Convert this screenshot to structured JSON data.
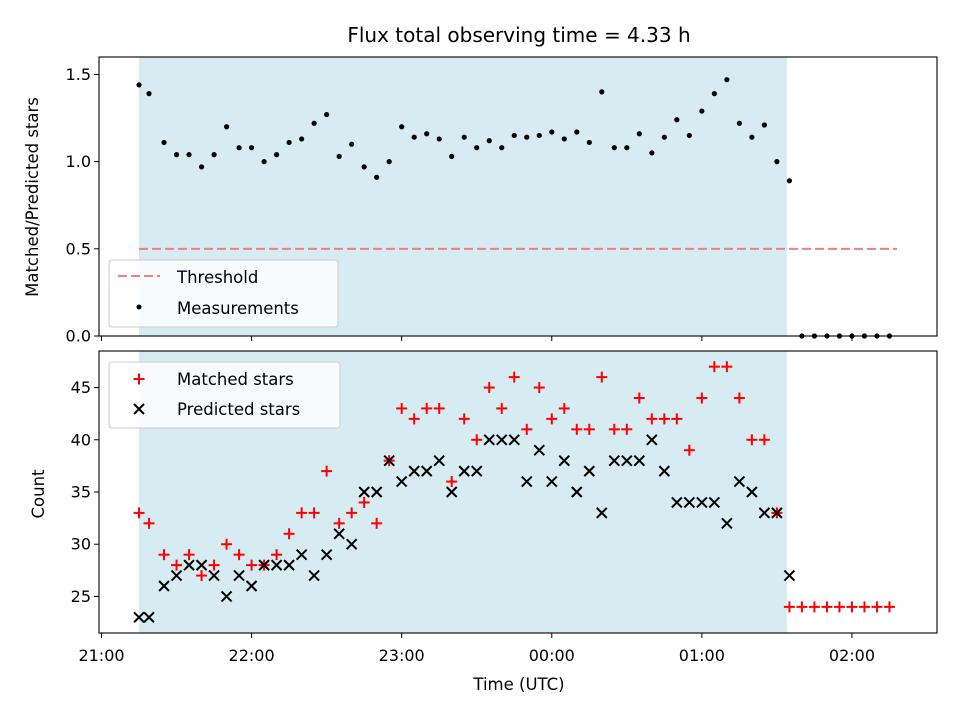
{
  "chart_data": {
    "type": "scatter",
    "title": "Flux total observing time = 4.33 h",
    "xlabel": "Time (UTC)",
    "x_axis": {
      "ticks": [
        0,
        60,
        120,
        180,
        240,
        300,
        360
      ],
      "tick_labels": [
        "21:00",
        "22:00",
        "23:00",
        "00:00",
        "01:00",
        "02:00"
      ],
      "tick_values_min": [
        0,
        60,
        120,
        180,
        240,
        300
      ],
      "range_min": [
        -1,
        334
      ]
    },
    "observing_window_min": [
      15,
      274
    ],
    "observing_window_color": "#add8e6",
    "panels": [
      {
        "id": "ratio",
        "ylabel": "Matched/Predicted stars",
        "ylim": [
          0,
          1.6
        ],
        "yticks": [
          0,
          0.5,
          1.0,
          1.5
        ],
        "ytick_labels": [
          "0.0",
          "0.5",
          "1.0",
          "1.5"
        ],
        "legend_position": "lower left",
        "threshold": {
          "name": "Threshold",
          "value": 0.5,
          "x_range": [
            15,
            318
          ],
          "color": "#f08080"
        },
        "series": [
          {
            "name": "Measurements",
            "marker": "dot",
            "color": "#000000",
            "x": [
              15,
              19,
              25,
              30,
              35,
              40,
              45,
              50,
              55,
              60,
              65,
              70,
              75,
              80,
              85,
              90,
              95,
              100,
              105,
              110,
              115,
              120,
              125,
              130,
              135,
              140,
              145,
              150,
              155,
              160,
              165,
              170,
              175,
              180,
              185,
              190,
              195,
              200,
              205,
              210,
              215,
              220,
              225,
              230,
              235,
              240,
              245,
              250,
              255,
              260,
              265,
              270,
              275,
              280,
              285,
              290,
              295,
              300,
              305,
              310,
              315
            ],
            "y": [
              1.44,
              1.39,
              1.11,
              1.04,
              1.04,
              0.97,
              1.04,
              1.2,
              1.08,
              1.08,
              1.0,
              1.04,
              1.11,
              1.13,
              1.22,
              1.27,
              1.03,
              1.1,
              0.97,
              0.91,
              1.0,
              1.2,
              1.14,
              1.16,
              1.13,
              1.03,
              1.14,
              1.08,
              1.12,
              1.08,
              1.15,
              1.14,
              1.15,
              1.17,
              1.13,
              1.17,
              1.11,
              1.4,
              1.08,
              1.08,
              1.16,
              1.05,
              1.14,
              1.24,
              1.15,
              1.29,
              1.39,
              1.47,
              1.22,
              1.14,
              1.21,
              1.0,
              0.89,
              0.0,
              0.0,
              0.0,
              0.0,
              0.0,
              0.0,
              0.0,
              0.0
            ]
          }
        ]
      },
      {
        "id": "count",
        "ylabel": "Count",
        "ylim": [
          21.5,
          48.5
        ],
        "yticks": [
          25,
          30,
          35,
          40,
          45
        ],
        "ytick_labels": [
          "25",
          "30",
          "35",
          "40",
          "45"
        ],
        "legend_position": "upper left",
        "series": [
          {
            "name": "Matched stars",
            "marker": "plus",
            "color": "#ff0000",
            "x": [
              15,
              19,
              25,
              30,
              35,
              40,
              45,
              50,
              55,
              60,
              65,
              70,
              75,
              80,
              85,
              90,
              95,
              100,
              105,
              110,
              115,
              120,
              125,
              130,
              135,
              140,
              145,
              150,
              155,
              160,
              165,
              170,
              175,
              180,
              185,
              190,
              195,
              200,
              205,
              210,
              215,
              220,
              225,
              230,
              235,
              240,
              245,
              250,
              255,
              260,
              265,
              270,
              275,
              280,
              285,
              290,
              295,
              300,
              305,
              310,
              315
            ],
            "y": [
              33,
              32,
              29,
              28,
              29,
              27,
              28,
              30,
              29,
              28,
              28,
              29,
              31,
              33,
              33,
              37,
              32,
              33,
              34,
              32,
              38,
              43,
              42,
              43,
              43,
              36,
              42,
              40,
              45,
              43,
              46,
              41,
              45,
              42,
              43,
              41,
              41,
              46,
              41,
              41,
              44,
              42,
              42,
              42,
              39,
              44,
              47,
              47,
              44,
              40,
              40,
              33,
              24,
              24,
              24,
              24,
              24,
              24,
              24,
              24,
              24
            ]
          },
          {
            "name": "Predicted stars",
            "marker": "x",
            "color": "#000000",
            "x": [
              15,
              19,
              25,
              30,
              35,
              40,
              45,
              50,
              55,
              60,
              65,
              70,
              75,
              80,
              85,
              90,
              95,
              100,
              105,
              110,
              115,
              120,
              125,
              130,
              135,
              140,
              145,
              150,
              155,
              160,
              165,
              170,
              175,
              180,
              185,
              190,
              195,
              200,
              205,
              210,
              215,
              220,
              225,
              230,
              235,
              240,
              245,
              250,
              255,
              260,
              265,
              270,
              275
            ],
            "y": [
              23,
              23,
              26,
              27,
              28,
              28,
              27,
              25,
              27,
              26,
              28,
              28,
              28,
              29,
              27,
              29,
              31,
              30,
              35,
              35,
              38,
              36,
              37,
              37,
              38,
              35,
              37,
              37,
              40,
              40,
              40,
              36,
              39,
              36,
              38,
              35,
              37,
              33,
              38,
              38,
              38,
              40,
              37,
              34,
              34,
              34,
              34,
              32,
              36,
              35,
              33,
              33,
              27
            ]
          }
        ]
      }
    ]
  }
}
